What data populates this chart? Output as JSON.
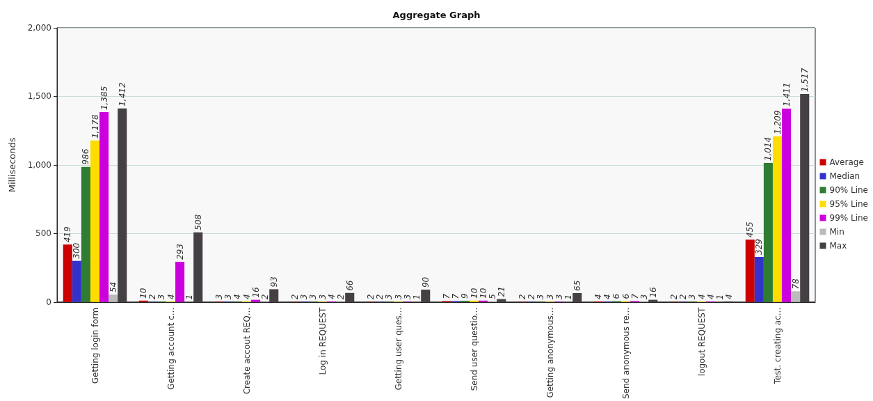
{
  "chart_data": {
    "type": "bar",
    "title": "Aggregate Graph",
    "ylabel": "Milliseconds",
    "categories": [
      "Getting login form",
      "Getting account c...",
      "Create accout REQ...",
      "Log in REQUEST",
      "Getting user ques...",
      "Send user questio...",
      "Getting anonymous...",
      "Send anonymous re...",
      "logout REQUEST",
      "Test. creating ac..."
    ],
    "series": [
      {
        "name": "Average",
        "color": "#cc0000",
        "values": [
          419,
          10,
          3,
          2,
          2,
          7,
          2,
          4,
          2,
          455
        ],
        "value_labels": [
          "419",
          "10",
          "3",
          "2",
          "2",
          "7",
          "2",
          "4",
          "2",
          "455"
        ]
      },
      {
        "name": "Median",
        "color": "#3333cc",
        "values": [
          300,
          2,
          3,
          3,
          2,
          7,
          2,
          4,
          2,
          329
        ],
        "value_labels": [
          "300",
          "2",
          "3",
          "3",
          "2",
          "7",
          "2",
          "4",
          "2",
          "329"
        ]
      },
      {
        "name": "90% Line",
        "color": "#2e7d32",
        "values": [
          986,
          3,
          4,
          3,
          3,
          9,
          3,
          6,
          3,
          1014
        ],
        "value_labels": [
          "986",
          "3",
          "4",
          "3",
          "3",
          "9",
          "3",
          "6",
          "3",
          "1,014"
        ]
      },
      {
        "name": "95% Line",
        "color": "#ffdd00",
        "values": [
          1178,
          4,
          4,
          3,
          3,
          10,
          3,
          6,
          4,
          1209
        ],
        "value_labels": [
          "1,178",
          "4",
          "4",
          "3",
          "3",
          "10",
          "3",
          "6",
          "4",
          "1,209"
        ]
      },
      {
        "name": "99% Line",
        "color": "#cc00dd",
        "values": [
          1385,
          293,
          16,
          4,
          3,
          10,
          3,
          7,
          4,
          1411
        ],
        "value_labels": [
          "1,385",
          "293",
          "16",
          "4",
          "3",
          "10",
          "3",
          "7",
          "4",
          "1,411"
        ]
      },
      {
        "name": "Min",
        "color": "#bbbbbb",
        "values": [
          54,
          1,
          2,
          2,
          1,
          5,
          1,
          3,
          1,
          78
        ],
        "value_labels": [
          "54",
          "1",
          "2",
          "2",
          "1",
          "5",
          "1",
          "3",
          "1",
          "78"
        ]
      },
      {
        "name": "Max",
        "color": "#444044",
        "values": [
          1412,
          508,
          93,
          66,
          90,
          21,
          65,
          16,
          4,
          1517
        ],
        "value_labels": [
          "1,412",
          "508",
          "93",
          "66",
          "90",
          "21",
          "65",
          "16",
          "4",
          "1,517"
        ]
      }
    ],
    "ylim": [
      0,
      2000
    ],
    "yticks": [
      0,
      {
        "value": 500,
        "label": "500"
      },
      {
        "value": 1000,
        "label": "1,000"
      },
      {
        "value": 1500,
        "label": "1,500"
      },
      {
        "value": 2000,
        "label": "2,000"
      }
    ],
    "grid": "y",
    "legend": "right"
  }
}
